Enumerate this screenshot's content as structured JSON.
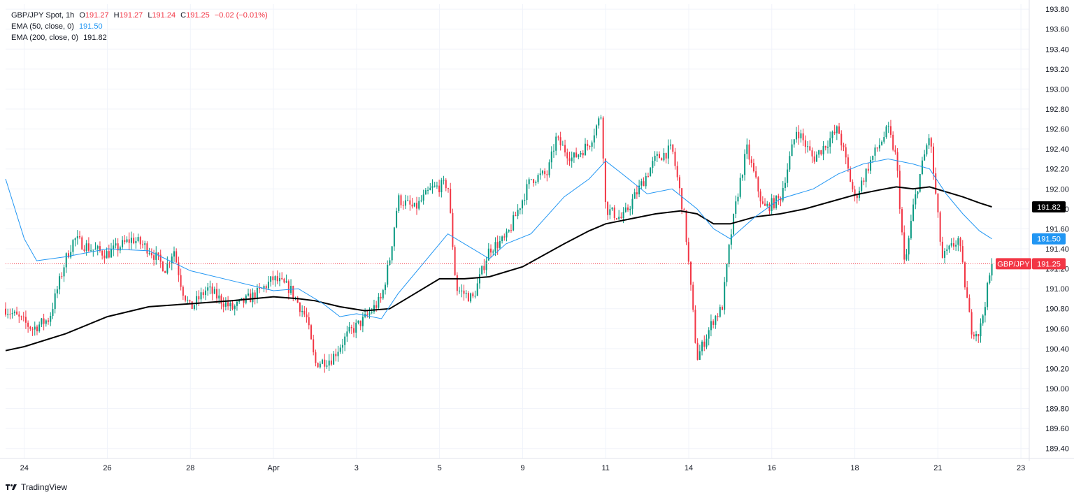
{
  "legend": {
    "symbol": "GBP/JPY Spot, 1h",
    "open_label": "O",
    "open": "191.27",
    "high_label": "H",
    "high": "191.27",
    "low_label": "L",
    "low": "191.24",
    "close_label": "C",
    "close": "191.25",
    "change": "−0.02 (−0.01%)",
    "ema50_label": "EMA (50, close, 0)",
    "ema50_value": "191.50",
    "ema200_label": "EMA (200, close, 0)",
    "ema200_value": "191.82"
  },
  "branding": {
    "name": "TradingView",
    "icon": "tradingview-logo-icon"
  },
  "colors": {
    "up": "#089981",
    "down": "#f23645",
    "ema50": "#2196f3",
    "ema200": "#000000",
    "grid": "#f0f3fa"
  },
  "chart_data": {
    "type": "candlestick",
    "title": "GBP/JPY Spot, 1h",
    "y_ticks": [
      "193.80",
      "193.60",
      "193.40",
      "193.20",
      "193.00",
      "192.80",
      "192.60",
      "192.40",
      "192.20",
      "192.00",
      "191.80",
      "191.60",
      "191.40",
      "191.20",
      "191.00",
      "190.80",
      "190.60",
      "190.40",
      "190.20",
      "190.00",
      "189.80",
      "189.60",
      "189.40"
    ],
    "ylim": [
      189.3,
      193.85
    ],
    "x_ticks": [
      "24",
      "26",
      "28",
      "Apr",
      "3",
      "5",
      "9",
      "11",
      "14",
      "16",
      "18",
      "21",
      "23"
    ],
    "x_tick_days": [
      0,
      2,
      4,
      6,
      8,
      10,
      12,
      14,
      16,
      18,
      20,
      22,
      24
    ],
    "xlim": [
      -0.45,
      24.2
    ],
    "price_path": [
      [
        -0.45,
        190.8
      ],
      [
        0.2,
        190.6
      ],
      [
        0.6,
        190.7
      ],
      [
        1.0,
        191.3
      ],
      [
        1.2,
        191.5
      ],
      [
        1.6,
        191.4
      ],
      [
        2.0,
        191.35
      ],
      [
        2.6,
        191.5
      ],
      [
        3.0,
        191.4
      ],
      [
        3.4,
        191.2
      ],
      [
        3.6,
        191.4
      ],
      [
        3.8,
        191.0
      ],
      [
        4.0,
        190.8
      ],
      [
        4.4,
        191.0
      ],
      [
        5.0,
        190.8
      ],
      [
        5.6,
        190.95
      ],
      [
        6.0,
        191.1
      ],
      [
        6.4,
        191.0
      ],
      [
        6.8,
        190.7
      ],
      [
        7.0,
        190.25
      ],
      [
        7.4,
        190.3
      ],
      [
        7.8,
        190.55
      ],
      [
        8.2,
        190.7
      ],
      [
        8.6,
        190.9
      ],
      [
        8.8,
        191.3
      ],
      [
        9.0,
        191.9
      ],
      [
        9.4,
        191.8
      ],
      [
        9.8,
        192.0
      ],
      [
        10.2,
        192.05
      ],
      [
        10.4,
        191.0
      ],
      [
        10.8,
        190.9
      ],
      [
        11.2,
        191.4
      ],
      [
        11.6,
        191.5
      ],
      [
        11.8,
        191.7
      ],
      [
        12.2,
        192.1
      ],
      [
        12.6,
        192.15
      ],
      [
        12.8,
        192.5
      ],
      [
        13.2,
        192.3
      ],
      [
        13.6,
        192.45
      ],
      [
        13.9,
        192.75
      ],
      [
        14.0,
        191.8
      ],
      [
        14.4,
        191.7
      ],
      [
        14.8,
        192.0
      ],
      [
        15.2,
        192.3
      ],
      [
        15.6,
        192.4
      ],
      [
        15.9,
        191.7
      ],
      [
        16.2,
        190.3
      ],
      [
        16.6,
        190.7
      ],
      [
        16.8,
        190.8
      ],
      [
        17.0,
        191.5
      ],
      [
        17.2,
        192.0
      ],
      [
        17.4,
        192.4
      ],
      [
        17.8,
        191.8
      ],
      [
        18.2,
        191.9
      ],
      [
        18.6,
        192.6
      ],
      [
        19.0,
        192.3
      ],
      [
        19.6,
        192.6
      ],
      [
        20.0,
        191.9
      ],
      [
        20.4,
        192.3
      ],
      [
        20.8,
        192.6
      ],
      [
        21.0,
        192.3
      ],
      [
        21.2,
        191.2
      ],
      [
        21.4,
        191.8
      ],
      [
        21.6,
        192.2
      ],
      [
        21.8,
        192.55
      ],
      [
        22.1,
        191.3
      ],
      [
        22.5,
        191.5
      ],
      [
        22.8,
        190.6
      ],
      [
        23.0,
        190.55
      ],
      [
        23.3,
        191.25
      ]
    ],
    "ema50": [
      [
        -0.45,
        192.1
      ],
      [
        0.0,
        191.5
      ],
      [
        0.3,
        191.28
      ],
      [
        1.0,
        191.32
      ],
      [
        2.0,
        191.4
      ],
      [
        3.0,
        191.38
      ],
      [
        4.0,
        191.18
      ],
      [
        5.0,
        191.08
      ],
      [
        6.0,
        190.98
      ],
      [
        6.6,
        191.0
      ],
      [
        7.2,
        190.85
      ],
      [
        7.6,
        190.72
      ],
      [
        8.0,
        190.75
      ],
      [
        8.6,
        190.7
      ],
      [
        9.0,
        190.95
      ],
      [
        10.0,
        191.45
      ],
      [
        10.2,
        191.55
      ],
      [
        10.6,
        191.45
      ],
      [
        11.2,
        191.3
      ],
      [
        11.6,
        191.45
      ],
      [
        12.2,
        191.55
      ],
      [
        13.0,
        191.92
      ],
      [
        13.6,
        192.1
      ],
      [
        14.0,
        192.28
      ],
      [
        14.4,
        192.15
      ],
      [
        15.0,
        191.95
      ],
      [
        15.6,
        192.0
      ],
      [
        16.2,
        191.8
      ],
      [
        16.6,
        191.6
      ],
      [
        17.0,
        191.5
      ],
      [
        17.6,
        191.72
      ],
      [
        18.2,
        191.9
      ],
      [
        19.0,
        192.0
      ],
      [
        19.6,
        192.15
      ],
      [
        20.2,
        192.25
      ],
      [
        20.8,
        192.3
      ],
      [
        21.4,
        192.25
      ],
      [
        21.8,
        192.2
      ],
      [
        22.2,
        191.95
      ],
      [
        22.6,
        191.75
      ],
      [
        23.0,
        191.58
      ],
      [
        23.3,
        191.5
      ]
    ],
    "ema200": [
      [
        -0.45,
        190.38
      ],
      [
        0.0,
        190.42
      ],
      [
        1.0,
        190.55
      ],
      [
        2.0,
        190.72
      ],
      [
        3.0,
        190.82
      ],
      [
        4.0,
        190.85
      ],
      [
        5.0,
        190.88
      ],
      [
        6.0,
        190.92
      ],
      [
        6.6,
        190.9
      ],
      [
        7.0,
        190.88
      ],
      [
        7.6,
        190.82
      ],
      [
        8.2,
        190.78
      ],
      [
        8.8,
        190.8
      ],
      [
        9.4,
        190.95
      ],
      [
        10.0,
        191.1
      ],
      [
        10.6,
        191.1
      ],
      [
        11.2,
        191.12
      ],
      [
        12.0,
        191.22
      ],
      [
        13.0,
        191.45
      ],
      [
        13.6,
        191.58
      ],
      [
        14.0,
        191.65
      ],
      [
        14.6,
        191.7
      ],
      [
        15.2,
        191.75
      ],
      [
        15.8,
        191.78
      ],
      [
        16.2,
        191.75
      ],
      [
        16.6,
        191.65
      ],
      [
        17.0,
        191.65
      ],
      [
        17.6,
        191.72
      ],
      [
        18.2,
        191.75
      ],
      [
        18.8,
        191.8
      ],
      [
        19.4,
        191.87
      ],
      [
        20.0,
        191.94
      ],
      [
        20.6,
        191.99
      ],
      [
        21.0,
        192.02
      ],
      [
        21.4,
        192.0
      ],
      [
        21.8,
        192.02
      ],
      [
        22.2,
        191.97
      ],
      [
        22.6,
        191.92
      ],
      [
        23.0,
        191.86
      ],
      [
        23.3,
        191.82
      ]
    ],
    "series": [
      {
        "name": "GBP/JPY",
        "last": 191.25,
        "label": "GBP/JPY",
        "value_label": "191.25"
      },
      {
        "name": "EMA (50, close, 0)",
        "last": 191.5,
        "value_label": "191.50"
      },
      {
        "name": "EMA (200, close, 0)",
        "last": 191.82,
        "value_label": "191.82"
      }
    ],
    "grid": true,
    "legend_position": "top-left"
  }
}
